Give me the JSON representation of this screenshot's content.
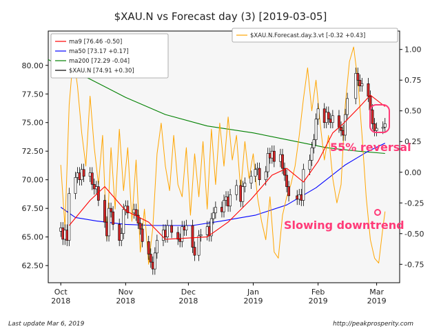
{
  "footer": {
    "left": "Last update Mar  6, 2019",
    "right": "http://peakprosperity.com"
  },
  "chart_data": {
    "type": "candlestick",
    "title": "$XAU.N vs Forecast day (3)  [2019-03-05]",
    "xlabel": "",
    "ylabel": "",
    "grid": false,
    "x_range": [
      "2018-09-25",
      "2019-03-12"
    ],
    "y_left_range": [
      61,
      83
    ],
    "y_right_range": [
      -0.9,
      1.15
    ],
    "x_ticks": [
      {
        "date": "2018-10-01",
        "label1": "Oct",
        "label2": "2018"
      },
      {
        "date": "2018-11-01",
        "label1": "Nov",
        "label2": "2018"
      },
      {
        "date": "2018-12-01",
        "label1": "Dec",
        "label2": "2018"
      },
      {
        "date": "2019-01-01",
        "label1": "Jan",
        "label2": "2019"
      },
      {
        "date": "2019-02-01",
        "label1": "Feb",
        "label2": "2019"
      },
      {
        "date": "2019-03-01",
        "label1": "Mar",
        "label2": "2019"
      }
    ],
    "y_left_ticks": [
      "62.50",
      "65.00",
      "67.50",
      "70.00",
      "72.50",
      "75.00",
      "77.50",
      "80.00"
    ],
    "y_right_ticks": [
      "-0.75",
      "-0.50",
      "-0.25",
      "0.00",
      "0.25",
      "0.50",
      "0.75",
      "1.00"
    ],
    "legend_left": {
      "placement": "top-left",
      "entries": [
        {
          "label": "ma9 [76.46 -0.50]",
          "color": "#ff0000"
        },
        {
          "label": "ma50 [73.17 +0.17]",
          "color": "#0000ff"
        },
        {
          "label": "ma200 [72.29 -0.04]",
          "color": "#008000"
        },
        {
          "label": "$XAU.N [74.91 +0.30]",
          "color": "#000000"
        }
      ]
    },
    "legend_right": {
      "placement": "top-right",
      "entries": [
        {
          "label": "$XAU.N.Forecast.day.3.vt [-0.32 +0.43]",
          "color": "#ffa500"
        }
      ]
    },
    "annotations": [
      {
        "text": "55% reversal",
        "color": "#ff3b78"
      },
      {
        "text": "Slowing downtrend",
        "color": "#ff3b78"
      }
    ],
    "colors": {
      "up_candle": "#ffffff",
      "down_candle": "#d62728",
      "annotation": "#ff3b78",
      "plot_bg": "#f6f6f6"
    },
    "closes": [
      {
        "d": "2018-10-01",
        "c": 65.8
      },
      {
        "d": "2018-10-02",
        "c": 64.8
      },
      {
        "d": "2018-10-03",
        "c": 65.6
      },
      {
        "d": "2018-10-04",
        "c": 64.7
      },
      {
        "d": "2018-10-05",
        "c": 68.8
      },
      {
        "d": "2018-10-08",
        "c": 70.2
      },
      {
        "d": "2018-10-09",
        "c": 70.6
      },
      {
        "d": "2018-10-10",
        "c": 70.0
      },
      {
        "d": "2018-10-11",
        "c": 70.9
      },
      {
        "d": "2018-10-12",
        "c": 70.3
      },
      {
        "d": "2018-10-15",
        "c": 70.6
      },
      {
        "d": "2018-10-16",
        "c": 69.6
      },
      {
        "d": "2018-10-17",
        "c": 69.2
      },
      {
        "d": "2018-10-18",
        "c": 69.4
      },
      {
        "d": "2018-10-19",
        "c": 68.2
      },
      {
        "d": "2018-10-22",
        "c": 66.3
      },
      {
        "d": "2018-10-23",
        "c": 65.1
      },
      {
        "d": "2018-10-24",
        "c": 67.5
      },
      {
        "d": "2018-10-25",
        "c": 67.2
      },
      {
        "d": "2018-10-26",
        "c": 66.1
      },
      {
        "d": "2018-10-29",
        "c": 64.7
      },
      {
        "d": "2018-10-30",
        "c": 65.3
      },
      {
        "d": "2018-10-31",
        "c": 67.4
      },
      {
        "d": "2018-11-01",
        "c": 67.7
      },
      {
        "d": "2018-11-02",
        "c": 67.1
      },
      {
        "d": "2018-11-05",
        "c": 67.4
      },
      {
        "d": "2018-11-06",
        "c": 66.9
      },
      {
        "d": "2018-11-07",
        "c": 66.2
      },
      {
        "d": "2018-11-08",
        "c": 65.7
      },
      {
        "d": "2018-11-09",
        "c": 64.6
      },
      {
        "d": "2018-11-12",
        "c": 63.5
      },
      {
        "d": "2018-11-13",
        "c": 62.8
      },
      {
        "d": "2018-11-14",
        "c": 62.2
      },
      {
        "d": "2018-11-15",
        "c": 63.6
      },
      {
        "d": "2018-11-16",
        "c": 64.7
      },
      {
        "d": "2018-11-19",
        "c": 65.6
      },
      {
        "d": "2018-11-20",
        "c": 65.0
      },
      {
        "d": "2018-11-21",
        "c": 66.0
      },
      {
        "d": "2018-11-23",
        "c": 65.4
      },
      {
        "d": "2018-11-26",
        "c": 64.8
      },
      {
        "d": "2018-11-27",
        "c": 64.6
      },
      {
        "d": "2018-11-28",
        "c": 65.9
      },
      {
        "d": "2018-11-29",
        "c": 65.6
      },
      {
        "d": "2018-11-30",
        "c": 66.0
      },
      {
        "d": "2018-12-03",
        "c": 64.1
      },
      {
        "d": "2018-12-04",
        "c": 63.4
      },
      {
        "d": "2018-12-06",
        "c": 65.1
      },
      {
        "d": "2018-12-07",
        "c": 65.2
      },
      {
        "d": "2018-12-10",
        "c": 65.9
      },
      {
        "d": "2018-12-11",
        "c": 65.1
      },
      {
        "d": "2018-12-12",
        "c": 66.6
      },
      {
        "d": "2018-12-13",
        "c": 67.1
      },
      {
        "d": "2018-12-14",
        "c": 67.6
      },
      {
        "d": "2018-12-17",
        "c": 67.2
      },
      {
        "d": "2018-12-18",
        "c": 68.2
      },
      {
        "d": "2018-12-19",
        "c": 68.5
      },
      {
        "d": "2018-12-20",
        "c": 67.7
      },
      {
        "d": "2018-12-21",
        "c": 68.7
      },
      {
        "d": "2018-12-24",
        "c": 69.5
      },
      {
        "d": "2018-12-26",
        "c": 68.1
      },
      {
        "d": "2018-12-27",
        "c": 69.4
      },
      {
        "d": "2018-12-28",
        "c": 69.7
      },
      {
        "d": "2018-12-31",
        "c": 70.3
      },
      {
        "d": "2019-01-02",
        "c": 70.9
      },
      {
        "d": "2019-01-03",
        "c": 71.0
      },
      {
        "d": "2019-01-04",
        "c": 70.0
      },
      {
        "d": "2019-01-07",
        "c": 70.7
      },
      {
        "d": "2019-01-08",
        "c": 72.3
      },
      {
        "d": "2019-01-09",
        "c": 71.9
      },
      {
        "d": "2019-01-10",
        "c": 72.5
      },
      {
        "d": "2019-01-11",
        "c": 71.6
      },
      {
        "d": "2019-01-14",
        "c": 72.2
      },
      {
        "d": "2019-01-15",
        "c": 71.0
      },
      {
        "d": "2019-01-16",
        "c": 70.4
      },
      {
        "d": "2019-01-17",
        "c": 69.4
      },
      {
        "d": "2019-01-18",
        "c": 68.6
      },
      {
        "d": "2019-01-22",
        "c": 68.3
      },
      {
        "d": "2019-01-23",
        "c": 68.7
      },
      {
        "d": "2019-01-24",
        "c": 68.2
      },
      {
        "d": "2019-01-25",
        "c": 70.9
      },
      {
        "d": "2019-01-28",
        "c": 71.7
      },
      {
        "d": "2019-01-29",
        "c": 72.8
      },
      {
        "d": "2019-01-30",
        "c": 73.5
      },
      {
        "d": "2019-01-31",
        "c": 75.3
      },
      {
        "d": "2019-02-01",
        "c": 76.2
      },
      {
        "d": "2019-02-04",
        "c": 75.0
      },
      {
        "d": "2019-02-05",
        "c": 75.9
      },
      {
        "d": "2019-02-06",
        "c": 75.3
      },
      {
        "d": "2019-02-07",
        "c": 75.0
      },
      {
        "d": "2019-02-08",
        "c": 75.6
      },
      {
        "d": "2019-02-11",
        "c": 74.6
      },
      {
        "d": "2019-02-12",
        "c": 74.3
      },
      {
        "d": "2019-02-13",
        "c": 73.9
      },
      {
        "d": "2019-02-14",
        "c": 75.7
      },
      {
        "d": "2019-02-15",
        "c": 77.1
      },
      {
        "d": "2019-02-19",
        "c": 79.3
      },
      {
        "d": "2019-02-20",
        "c": 78.7
      },
      {
        "d": "2019-02-21",
        "c": 78.2
      },
      {
        "d": "2019-02-22",
        "c": 78.4
      },
      {
        "d": "2019-02-25",
        "c": 77.3
      },
      {
        "d": "2019-02-26",
        "c": 76.1
      },
      {
        "d": "2019-02-27",
        "c": 74.9
      },
      {
        "d": "2019-02-28",
        "c": 74.3
      },
      {
        "d": "2019-03-01",
        "c": 74.5
      },
      {
        "d": "2019-03-04",
        "c": 74.6
      },
      {
        "d": "2019-03-05",
        "c": 74.9
      }
    ],
    "ma9": [
      {
        "d": "2018-10-05",
        "v": 66.0
      },
      {
        "d": "2018-10-15",
        "v": 68.2
      },
      {
        "d": "2018-10-22",
        "v": 69.4
      },
      {
        "d": "2018-11-01",
        "v": 67.3
      },
      {
        "d": "2018-11-12",
        "v": 66.3
      },
      {
        "d": "2018-11-20",
        "v": 64.8
      },
      {
        "d": "2018-11-30",
        "v": 64.9
      },
      {
        "d": "2018-12-10",
        "v": 65.0
      },
      {
        "d": "2018-12-20",
        "v": 66.3
      },
      {
        "d": "2018-12-31",
        "v": 68.3
      },
      {
        "d": "2019-01-10",
        "v": 70.4
      },
      {
        "d": "2019-01-17",
        "v": 71.0
      },
      {
        "d": "2019-01-25",
        "v": 69.8
      },
      {
        "d": "2019-02-01",
        "v": 71.6
      },
      {
        "d": "2019-02-08",
        "v": 74.1
      },
      {
        "d": "2019-02-13",
        "v": 74.9
      },
      {
        "d": "2019-02-21",
        "v": 76.4
      },
      {
        "d": "2019-02-26",
        "v": 77.4
      },
      {
        "d": "2019-03-05",
        "v": 76.4
      }
    ],
    "ma50": [
      {
        "d": "2018-10-01",
        "v": 67.6
      },
      {
        "d": "2018-10-08",
        "v": 66.7
      },
      {
        "d": "2018-10-18",
        "v": 66.4
      },
      {
        "d": "2018-11-01",
        "v": 66.1
      },
      {
        "d": "2018-11-15",
        "v": 66.0
      },
      {
        "d": "2018-12-03",
        "v": 66.0
      },
      {
        "d": "2018-12-17",
        "v": 66.4
      },
      {
        "d": "2019-01-02",
        "v": 66.9
      },
      {
        "d": "2019-01-17",
        "v": 67.8
      },
      {
        "d": "2019-01-31",
        "v": 69.3
      },
      {
        "d": "2019-02-14",
        "v": 71.3
      },
      {
        "d": "2019-02-25",
        "v": 72.5
      },
      {
        "d": "2019-03-05",
        "v": 73.2
      }
    ],
    "ma200": [
      {
        "d": "2018-09-25",
        "v": 80.5
      },
      {
        "d": "2018-10-15",
        "v": 78.8
      },
      {
        "d": "2018-11-01",
        "v": 77.2
      },
      {
        "d": "2018-11-20",
        "v": 75.7
      },
      {
        "d": "2018-12-10",
        "v": 74.7
      },
      {
        "d": "2019-01-01",
        "v": 74.1
      },
      {
        "d": "2019-01-20",
        "v": 73.4
      },
      {
        "d": "2019-02-05",
        "v": 72.8
      },
      {
        "d": "2019-02-20",
        "v": 72.5
      },
      {
        "d": "2019-03-05",
        "v": 72.3
      }
    ],
    "forecast": [
      {
        "d": "2018-10-01",
        "v": 0.06
      },
      {
        "d": "2018-10-03",
        "v": -0.45
      },
      {
        "d": "2018-10-05",
        "v": 0.55
      },
      {
        "d": "2018-10-07",
        "v": 0.95
      },
      {
        "d": "2018-10-09",
        "v": 0.7
      },
      {
        "d": "2018-10-11",
        "v": 0.32
      },
      {
        "d": "2018-10-13",
        "v": 0.05
      },
      {
        "d": "2018-10-15",
        "v": 0.62
      },
      {
        "d": "2018-10-17",
        "v": 0.2
      },
      {
        "d": "2018-10-19",
        "v": -0.1
      },
      {
        "d": "2018-10-21",
        "v": 0.3
      },
      {
        "d": "2018-10-23",
        "v": -0.55
      },
      {
        "d": "2018-10-25",
        "v": 0.2
      },
      {
        "d": "2018-10-27",
        "v": -0.3
      },
      {
        "d": "2018-10-29",
        "v": 0.35
      },
      {
        "d": "2018-10-31",
        "v": -0.15
      },
      {
        "d": "2018-11-02",
        "v": 0.2
      },
      {
        "d": "2018-11-04",
        "v": -0.4
      },
      {
        "d": "2018-11-06",
        "v": 0.1
      },
      {
        "d": "2018-11-08",
        "v": -0.65
      },
      {
        "d": "2018-11-10",
        "v": -0.3
      },
      {
        "d": "2018-11-12",
        "v": -0.75
      },
      {
        "d": "2018-11-14",
        "v": -0.45
      },
      {
        "d": "2018-11-16",
        "v": 0.15
      },
      {
        "d": "2018-11-18",
        "v": 0.4
      },
      {
        "d": "2018-11-20",
        "v": 0.05
      },
      {
        "d": "2018-11-22",
        "v": -0.15
      },
      {
        "d": "2018-11-24",
        "v": 0.3
      },
      {
        "d": "2018-11-26",
        "v": -0.1
      },
      {
        "d": "2018-11-28",
        "v": -0.2
      },
      {
        "d": "2018-11-30",
        "v": 0.2
      },
      {
        "d": "2018-12-02",
        "v": -0.35
      },
      {
        "d": "2018-12-04",
        "v": 0.15
      },
      {
        "d": "2018-12-06",
        "v": -0.2
      },
      {
        "d": "2018-12-08",
        "v": 0.25
      },
      {
        "d": "2018-12-10",
        "v": -0.3
      },
      {
        "d": "2018-12-12",
        "v": 0.35
      },
      {
        "d": "2018-12-14",
        "v": -0.1
      },
      {
        "d": "2018-12-16",
        "v": 0.4
      },
      {
        "d": "2018-12-18",
        "v": 0.05
      },
      {
        "d": "2018-12-20",
        "v": 0.45
      },
      {
        "d": "2018-12-22",
        "v": 0.1
      },
      {
        "d": "2018-12-24",
        "v": 0.3
      },
      {
        "d": "2018-12-26",
        "v": -0.15
      },
      {
        "d": "2018-12-28",
        "v": 0.25
      },
      {
        "d": "2018-12-30",
        "v": -0.05
      },
      {
        "d": "2019-01-01",
        "v": 0.15
      },
      {
        "d": "2019-01-03",
        "v": -0.2
      },
      {
        "d": "2019-01-05",
        "v": -0.4
      },
      {
        "d": "2019-01-07",
        "v": -0.55
      },
      {
        "d": "2019-01-09",
        "v": -0.2
      },
      {
        "d": "2019-01-11",
        "v": -0.65
      },
      {
        "d": "2019-01-13",
        "v": -0.7
      },
      {
        "d": "2019-01-15",
        "v": -0.35
      },
      {
        "d": "2019-01-17",
        "v": -0.2
      },
      {
        "d": "2019-01-19",
        "v": -0.1
      },
      {
        "d": "2019-01-21",
        "v": 0.05
      },
      {
        "d": "2019-01-23",
        "v": 0.3
      },
      {
        "d": "2019-01-25",
        "v": 0.6
      },
      {
        "d": "2019-01-27",
        "v": 0.85
      },
      {
        "d": "2019-01-29",
        "v": 0.5
      },
      {
        "d": "2019-01-31",
        "v": 0.75
      },
      {
        "d": "2019-02-02",
        "v": 0.4
      },
      {
        "d": "2019-02-04",
        "v": 0.1
      },
      {
        "d": "2019-02-06",
        "v": 0.3
      },
      {
        "d": "2019-02-08",
        "v": -0.05
      },
      {
        "d": "2019-02-10",
        "v": -0.25
      },
      {
        "d": "2019-02-12",
        "v": -0.1
      },
      {
        "d": "2019-02-14",
        "v": 0.55
      },
      {
        "d": "2019-02-16",
        "v": 0.9
      },
      {
        "d": "2019-02-18",
        "v": 1.02
      },
      {
        "d": "2019-02-20",
        "v": 0.75
      },
      {
        "d": "2019-02-22",
        "v": 0.3
      },
      {
        "d": "2019-02-24",
        "v": -0.2
      },
      {
        "d": "2019-02-26",
        "v": -0.55
      },
      {
        "d": "2019-02-28",
        "v": -0.7
      },
      {
        "d": "2019-03-02",
        "v": -0.74
      },
      {
        "d": "2019-03-04",
        "v": -0.45
      },
      {
        "d": "2019-03-05",
        "v": -0.32
      }
    ]
  }
}
